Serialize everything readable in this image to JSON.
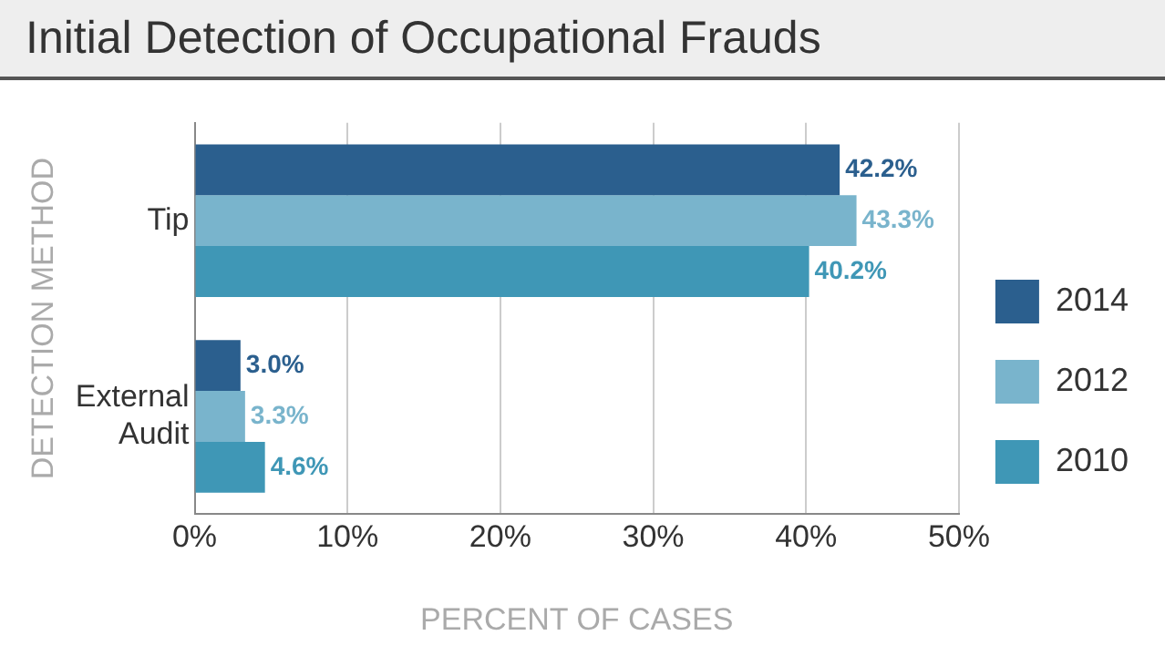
{
  "chart_data": {
    "type": "bar",
    "orientation": "horizontal",
    "title": "Initial Detection of Occupational Frauds",
    "xlabel": "PERCENT OF CASES",
    "ylabel": "DETECTION METHOD",
    "categories": [
      "Tip",
      "External Audit"
    ],
    "series": [
      {
        "name": "2014",
        "color": "#2b5f8e",
        "values": [
          42.2,
          3.0
        ]
      },
      {
        "name": "2012",
        "color": "#79b4cc",
        "values": [
          43.3,
          3.3
        ]
      },
      {
        "name": "2010",
        "color": "#3f97b6",
        "values": [
          40.2,
          4.6
        ]
      }
    ],
    "value_labels": [
      [
        "42.2%",
        "3.0%"
      ],
      [
        "43.3%",
        "3.3%"
      ],
      [
        "40.2%",
        "4.6%"
      ]
    ],
    "xlim": [
      0,
      50
    ],
    "xticks": [
      {
        "value": 0,
        "label": "0%"
      },
      {
        "value": 10,
        "label": "10%"
      },
      {
        "value": 20,
        "label": "20%"
      },
      {
        "value": 30,
        "label": "30%"
      },
      {
        "value": 40,
        "label": "40%"
      },
      {
        "value": 50,
        "label": "50%"
      }
    ],
    "grid": "x",
    "legend": "right"
  }
}
